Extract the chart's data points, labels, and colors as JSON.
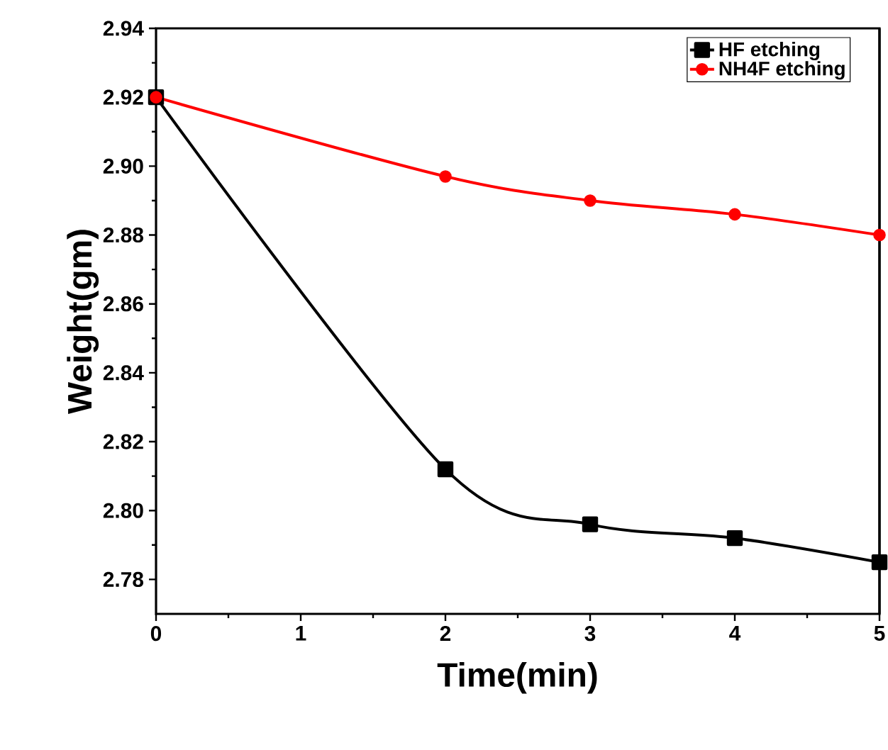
{
  "chart_data": {
    "type": "line",
    "xlabel": "Time(min)",
    "ylabel": "Weight(gm)",
    "x": [
      0,
      2,
      3,
      4,
      5
    ],
    "series": [
      {
        "name": "HF etching",
        "color": "#000000",
        "marker": "square",
        "values": [
          2.92,
          2.812,
          2.796,
          2.792,
          2.785
        ]
      },
      {
        "name": "NH4F etching",
        "color": "#ff0000",
        "marker": "circle",
        "values": [
          2.92,
          2.897,
          2.89,
          2.886,
          2.88
        ]
      }
    ],
    "xlim": [
      0,
      5
    ],
    "ylim": [
      2.77,
      2.94
    ],
    "xticks": [
      0,
      1,
      2,
      3,
      4,
      5
    ],
    "yticks": [
      2.78,
      {
        "value": 2.8,
        "label": "2.80"
      },
      2.82,
      2.84,
      2.86,
      2.88,
      {
        "value": 2.9,
        "label": "2.90"
      },
      2.92,
      2.94
    ],
    "legend": "top right",
    "grid": false,
    "line_style": "solid"
  }
}
